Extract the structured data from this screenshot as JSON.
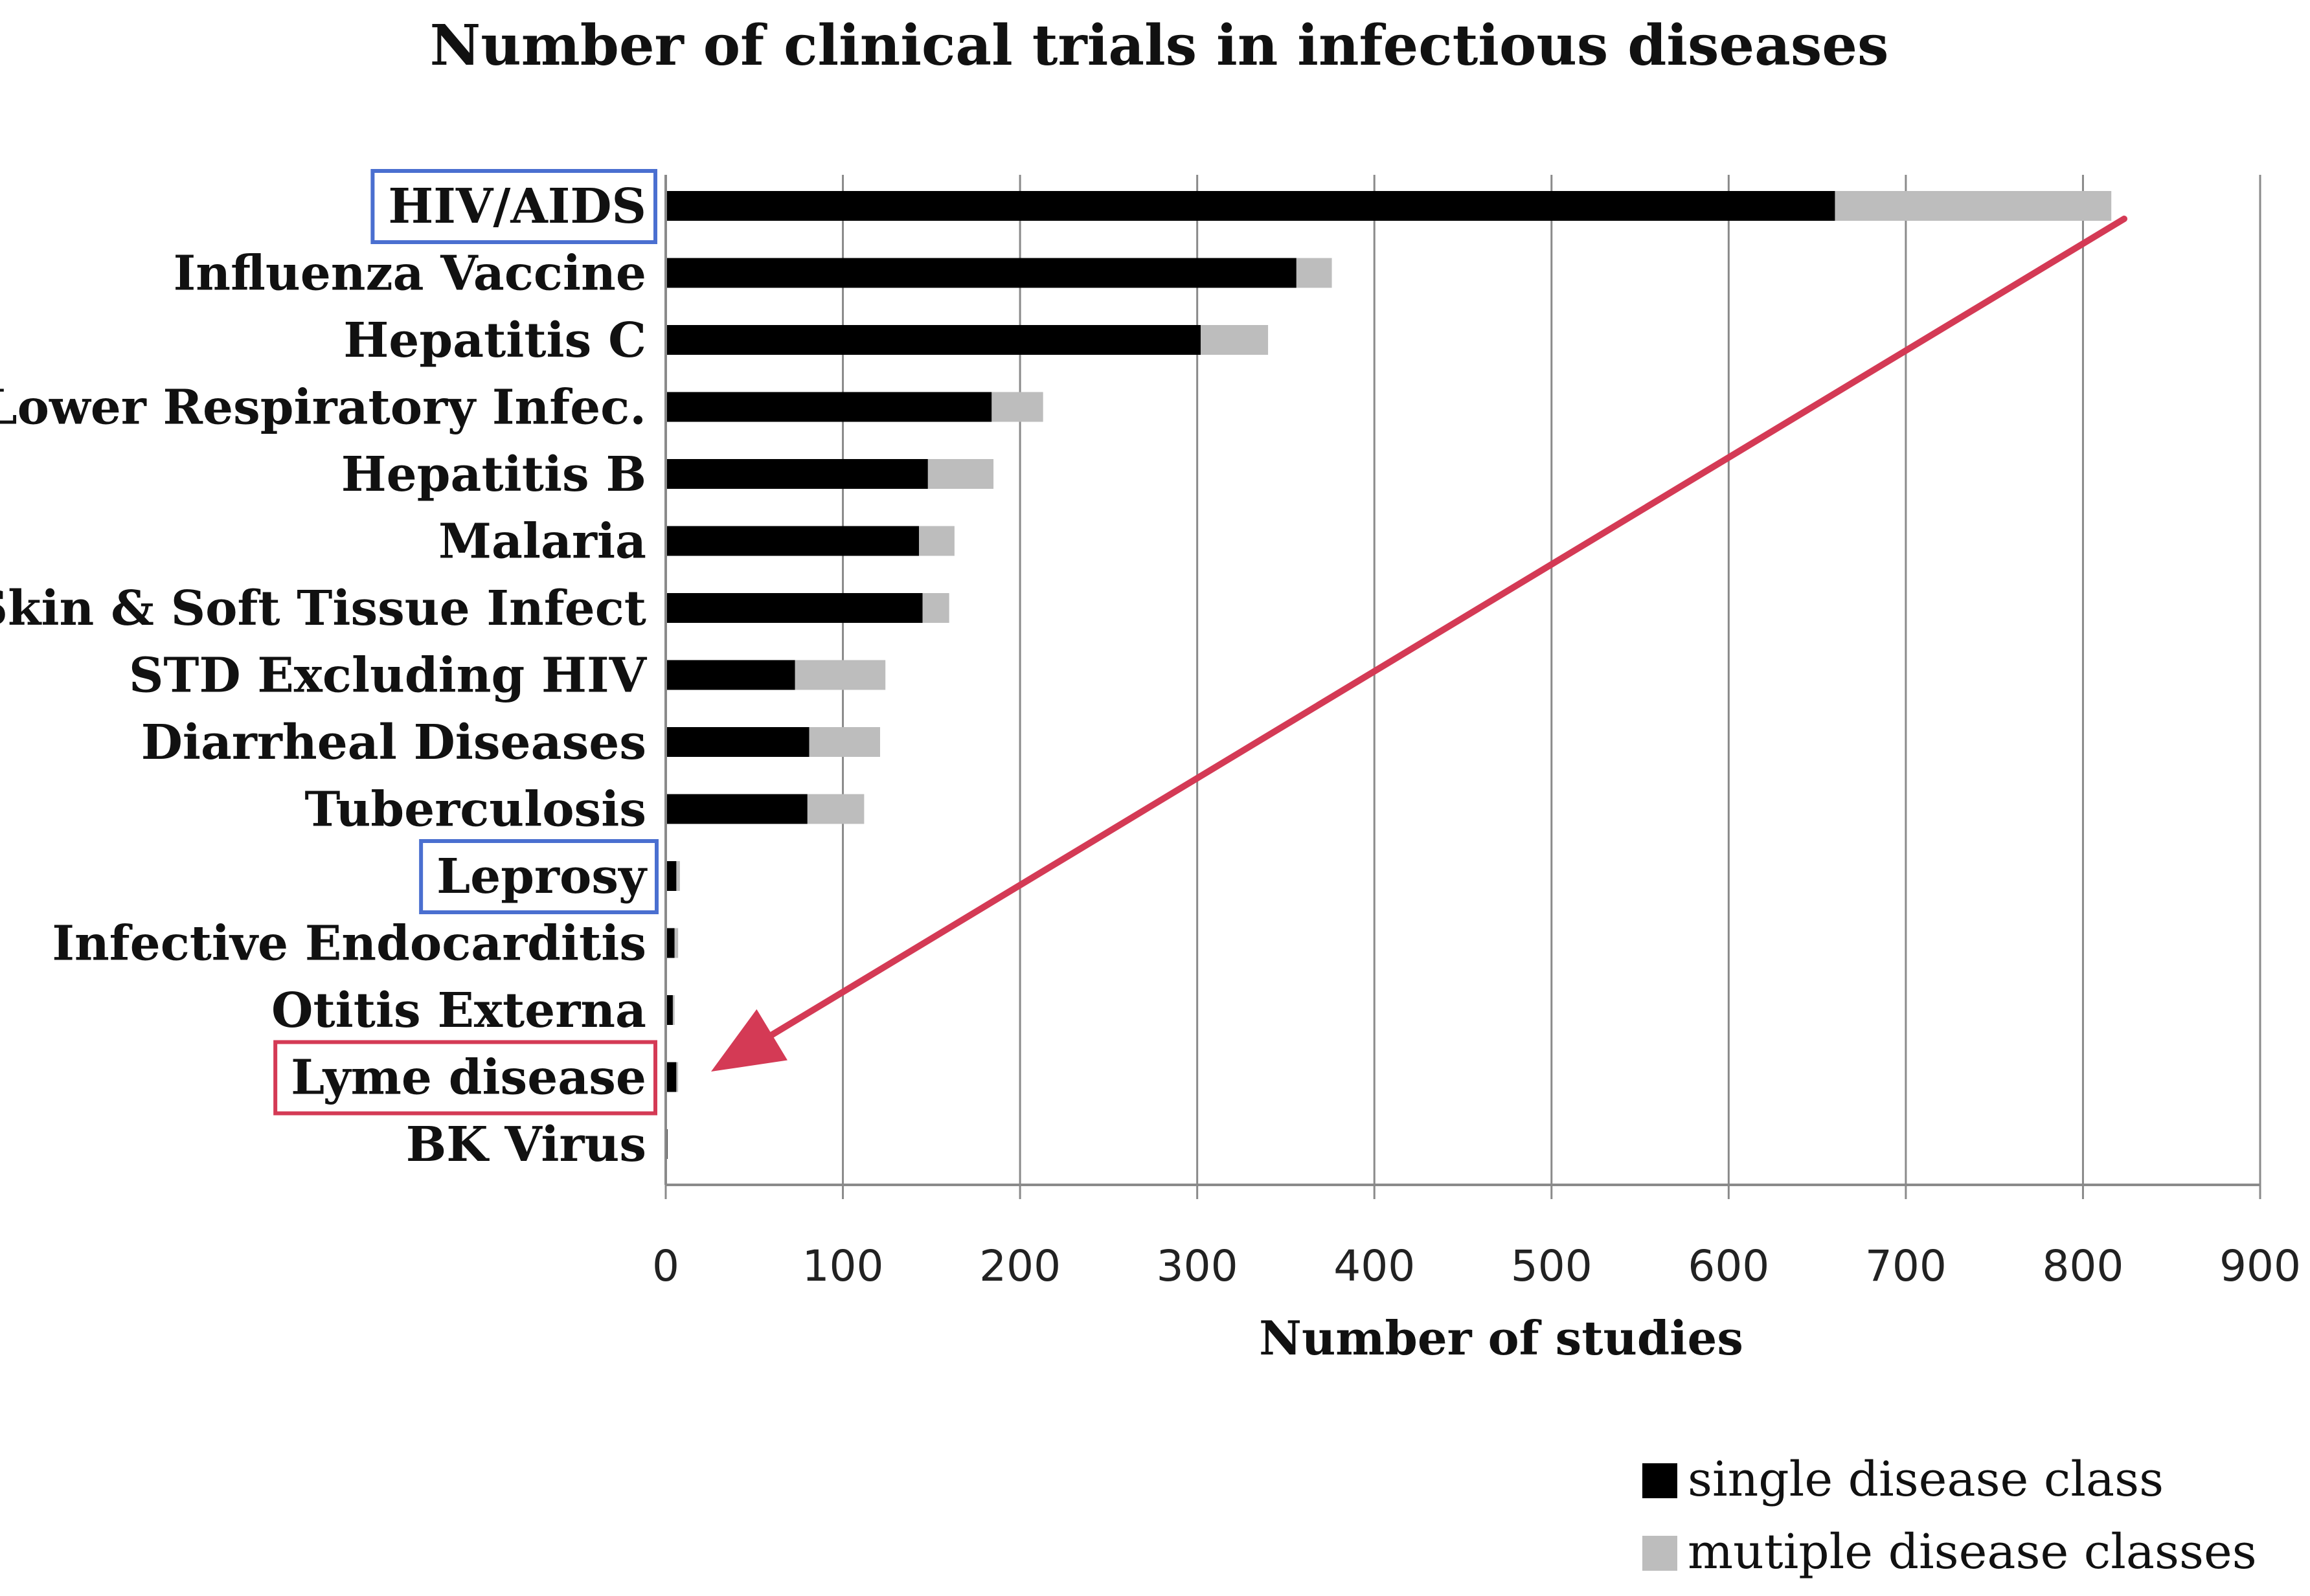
{
  "chart_data": {
    "type": "bar",
    "orientation": "horizontal",
    "stacked": true,
    "title": "Number of clinical trials in infectious diseases",
    "xlabel": "Number of studies",
    "ylabel": "",
    "xlim": [
      0,
      900
    ],
    "xticks": [
      0,
      100,
      200,
      300,
      400,
      500,
      600,
      700,
      800,
      900
    ],
    "grid": "vertical",
    "categories": [
      "HIV/AIDS",
      "Influenza Vaccine",
      "Hepatitis C",
      "Lower Respiratory Infec.",
      "Hepatitis B",
      "Malaria",
      "Skin & Soft Tissue Infect",
      "STD Excluding HIV",
      "Diarrheal Diseases",
      "Tuberculosis",
      "Leprosy",
      "Infective Endocarditis",
      "Otitis Externa",
      "Lyme disease",
      "BK Virus"
    ],
    "series": [
      {
        "name": "single disease class",
        "color": "#000000",
        "values": [
          660,
          356,
          302,
          184,
          148,
          143,
          145,
          73,
          81,
          80,
          6,
          5,
          4,
          6,
          1
        ]
      },
      {
        "name": "mutiple disease classes",
        "color": "#bdbdbd",
        "values": [
          156,
          20,
          38,
          29,
          37,
          20,
          15,
          51,
          40,
          32,
          2,
          2,
          1,
          1,
          0
        ]
      }
    ],
    "legend_position": "bottom-right",
    "highlighted_categories": [
      {
        "category": "HIV/AIDS",
        "color": "#4a6fd0"
      },
      {
        "category": "Leprosy",
        "color": "#4a6fd0"
      },
      {
        "category": "Lyme disease",
        "color": "#d43a55"
      }
    ],
    "annotation": "arrow from the top of HIV/AIDS bar down to Lyme disease",
    "annotation_color": "#d43a55"
  }
}
